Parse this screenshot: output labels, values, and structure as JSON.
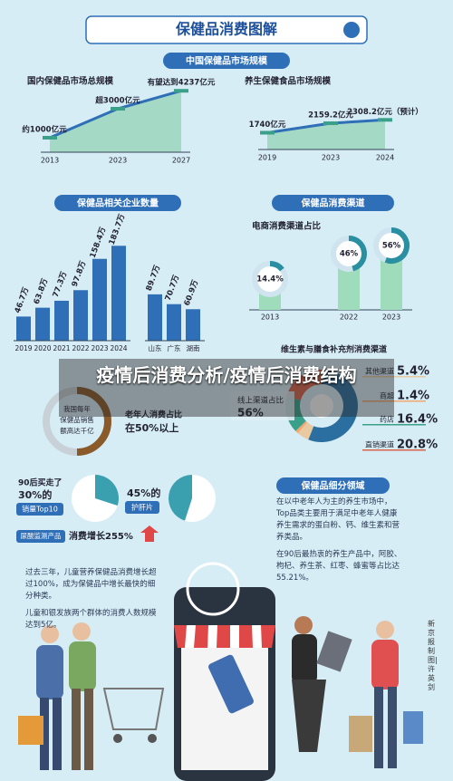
{
  "header": {
    "title": "保健品消费图解"
  },
  "market": {
    "heading": "中国保健品市场规模",
    "domestic": {
      "title": "国内保健品市场总规模",
      "categories": [
        "2013",
        "2023",
        "2027"
      ],
      "values": [
        1000,
        3000,
        4237
      ],
      "value_labels": [
        "约1000亿元",
        "超3000亿元",
        "有望达到4237亿元"
      ]
    },
    "health_food": {
      "title": "养生保健食品市场规模",
      "categories": [
        "2019",
        "2023",
        "2024"
      ],
      "values": [
        1740,
        2159.2,
        2308.2
      ],
      "value_labels": [
        "1740亿元",
        "2159.2亿元",
        "2308.2亿元（预计）"
      ]
    }
  },
  "enterprises": {
    "heading": "保健品相关企业数量",
    "by_year": {
      "categories": [
        "2019",
        "2020",
        "2021",
        "2022",
        "2023",
        "2024"
      ],
      "values": [
        46.7,
        63.8,
        77.3,
        97.8,
        158.4,
        183.7
      ],
      "value_labels": [
        "46.7万",
        "63.8万",
        "77.3万",
        "97.8万",
        "158.4万",
        "183.7万"
      ]
    },
    "by_province": {
      "categories": [
        "山东",
        "广东",
        "湖南"
      ],
      "values": [
        89.7,
        70.7,
        60.9
      ],
      "value_labels": [
        "89.7万",
        "70.7万",
        "60.9万"
      ]
    }
  },
  "channels": {
    "heading": "保健品消费渠道",
    "ecommerce": {
      "title": "电商消费渠道占比",
      "categories": [
        "2013",
        "2022",
        "2023"
      ],
      "values": [
        14.4,
        46,
        56
      ],
      "value_labels": [
        "14.4%",
        "46%",
        "56%"
      ]
    },
    "vitamin": {
      "title": "维生素与膳食补充剂消费渠道",
      "online_label": "线上渠道占比",
      "online_value": 56,
      "online_value_label": "56%",
      "categories": [
        "其他渠道",
        "商超",
        "药店",
        "直销渠道"
      ],
      "values": [
        5.4,
        1.4,
        16.4,
        20.8
      ],
      "value_labels": [
        "5.4%",
        "1.4%",
        "16.4%",
        "20.8%"
      ]
    }
  },
  "overlay": {
    "text": "疫情后消费分析/疫情后消费结构"
  },
  "consumption": {
    "sales_text": "我国每年保健品销售额高达千亿",
    "elderly": {
      "label": "老年人消费占比",
      "value": 50,
      "value_label": "在50%以上"
    },
    "post90": {
      "text": "90后买走了",
      "value": 30,
      "value_label": "30%的",
      "sub": "销量Top10"
    },
    "liver": {
      "value": 45,
      "value_label": "45%的",
      "sub": "护肝片"
    },
    "uric": {
      "tag": "尿酸监测产品",
      "text": "消费增长255%"
    },
    "bullets": [
      "过去三年，儿童营养保健品消费增长超过100%，成为保健品中增长最快的细分种类。",
      "儿童和银发族两个群体的消费人数规模达到5亿。"
    ]
  },
  "segments": {
    "heading": "保健品细分领域",
    "bullets": [
      "在以中老年人为主的养生市场中，Top品类主要用于满足中老年人健康养生需求的蛋白粉、钙、维生素和营养类品。",
      "在90后最热衷的养生产品中，阿胶、枸杞、养生茶、红枣、蜂蜜等占比达55.21%。"
    ]
  },
  "credit": "新京报制图|许英剑"
}
